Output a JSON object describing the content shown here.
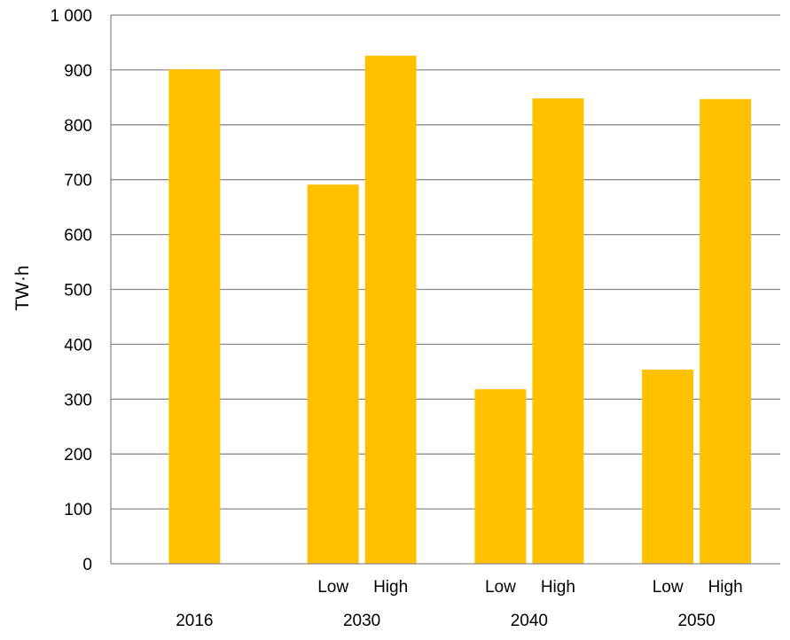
{
  "chart_data": {
    "type": "bar",
    "title": "",
    "xlabel": "",
    "ylabel": "TW·h",
    "ylim": [
      0,
      1000
    ],
    "y_ticks": [
      {
        "value": 0,
        "label": "0"
      },
      {
        "value": 100,
        "label": "100"
      },
      {
        "value": 200,
        "label": "200"
      },
      {
        "value": 300,
        "label": "300"
      },
      {
        "value": 400,
        "label": "400"
      },
      {
        "value": 500,
        "label": "500"
      },
      {
        "value": 600,
        "label": "600"
      },
      {
        "value": 700,
        "label": "700"
      },
      {
        "value": 800,
        "label": "800"
      },
      {
        "value": 900,
        "label": "900"
      },
      {
        "value": 1000,
        "label": "1 000"
      }
    ],
    "grid": true,
    "legend": "none",
    "bar_color": "#FFC000",
    "categories": [
      {
        "label": "2016",
        "bars": [
          {
            "sub_label": "",
            "value": 901
          }
        ]
      },
      {
        "label": "2030",
        "bars": [
          {
            "sub_label": "Low",
            "value": 691
          },
          {
            "sub_label": "High",
            "value": 926
          }
        ]
      },
      {
        "label": "2040",
        "bars": [
          {
            "sub_label": "Low",
            "value": 318
          },
          {
            "sub_label": "High",
            "value": 848
          }
        ]
      },
      {
        "label": "2050",
        "bars": [
          {
            "sub_label": "Low",
            "value": 354
          },
          {
            "sub_label": "High",
            "value": 847
          }
        ]
      }
    ]
  }
}
